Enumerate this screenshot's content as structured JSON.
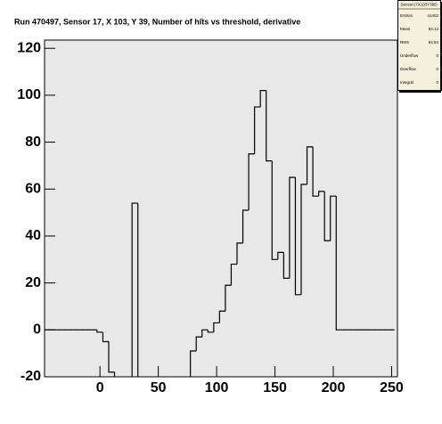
{
  "chart_data": {
    "type": "histogram",
    "title": "Run 470497, Sensor 17, X 103, Y 39, Number of hits vs threshold, derivative",
    "bins": [
      -47.5,
      -42.5,
      -37.5,
      -32.5,
      -27.5,
      -22.5,
      -17.5,
      -12.5,
      -7.5,
      -2.5,
      2.5,
      7.5,
      12.5,
      17.5,
      22.5,
      27.5,
      32.5,
      37.5,
      42.5,
      47.5,
      52.5,
      57.5,
      62.5,
      67.5,
      72.5,
      77.5,
      82.5,
      87.5,
      92.5,
      97.5,
      102.5,
      107.5,
      112.5,
      117.5,
      122.5,
      127.5,
      132.5,
      137.5,
      142.5,
      147.5,
      152.5,
      157.5,
      162.5,
      167.5,
      172.5,
      177.5,
      182.5,
      187.5,
      192.5,
      197.5,
      202.5,
      207.5,
      212.5,
      217.5,
      222.5,
      227.5,
      232.5,
      237.5,
      242.5,
      247.5,
      252.5
    ],
    "values": [
      0,
      0,
      0,
      0,
      0,
      0,
      0,
      0,
      0,
      -1,
      -5,
      -18,
      -21,
      -21,
      -21,
      54,
      -21,
      -21,
      -21,
      -21,
      -21,
      -21,
      -21,
      -21,
      -21,
      -9,
      -3,
      0,
      -1,
      3,
      8,
      19,
      28,
      37,
      51,
      75,
      95,
      102,
      72,
      30,
      33,
      22,
      65,
      15,
      62,
      78,
      57,
      59,
      38,
      57,
      0,
      0,
      0,
      0,
      0,
      0,
      0,
      0,
      0,
      0
    ],
    "color": "#000000",
    "xlim": [
      -47.5,
      255
    ],
    "ylim": [
      -20,
      123.5
    ],
    "xticks": [
      0,
      50,
      100,
      150,
      200,
      250
    ],
    "yticks": [
      -20,
      0,
      20,
      40,
      60,
      80,
      100,
      120
    ],
    "stats": {
      "title": "Sensor17X103Y39D",
      "rows": [
        [
          "Entries",
          "41402"
        ],
        [
          "Mean",
          "93.14"
        ],
        [
          "RMS",
          "64.84"
        ],
        [
          "Underflow",
          "0"
        ],
        [
          "Overflow",
          "0"
        ],
        [
          "Integral",
          "0"
        ]
      ]
    }
  }
}
